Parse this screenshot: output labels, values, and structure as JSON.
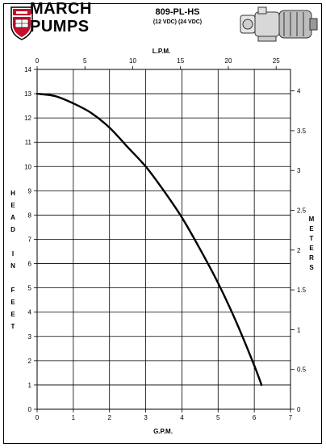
{
  "header": {
    "brand_line1": "MARCH",
    "brand_line2": "PUMPS",
    "model": "809-PL-HS",
    "voltage": "(12 VDC) (24 VDC)"
  },
  "chart_data": {
    "type": "line",
    "title": "809-PL-HS",
    "subtitle": "(12 VDC) (24 VDC)",
    "xlabel": "G.P.M.",
    "ylabel": "HEAD IN FEET",
    "x2label": "L.P.M.",
    "y2label": "METERS",
    "xlim": [
      0,
      7
    ],
    "ylim": [
      0,
      14
    ],
    "x2lim": [
      0,
      26.5
    ],
    "y2lim": [
      0,
      4.27
    ],
    "x_ticks": [
      "0",
      "1",
      "2",
      "3",
      "4",
      "5",
      "6",
      "7"
    ],
    "y_ticks": [
      "0",
      "1",
      "2",
      "3",
      "4",
      "5",
      "6",
      "7",
      "8",
      "9",
      "10",
      "11",
      "12",
      "13",
      "14"
    ],
    "x2_ticks": [
      "0",
      "5",
      "10",
      "15",
      "20",
      "25"
    ],
    "y2_ticks": [
      "0",
      "0.5",
      "1",
      "1.5",
      "2",
      "2.5",
      "3",
      "3.5",
      "4"
    ],
    "grid": true,
    "series": [
      {
        "name": "",
        "x": [
          0.0,
          0.5,
          1.0,
          1.5,
          2.0,
          2.5,
          3.0,
          3.5,
          4.0,
          4.5,
          5.0,
          5.5,
          6.0,
          6.2
        ],
        "y": [
          13.0,
          12.9,
          12.6,
          12.2,
          11.6,
          10.8,
          10.0,
          9.0,
          7.9,
          6.6,
          5.2,
          3.6,
          1.8,
          1.0
        ]
      }
    ]
  }
}
